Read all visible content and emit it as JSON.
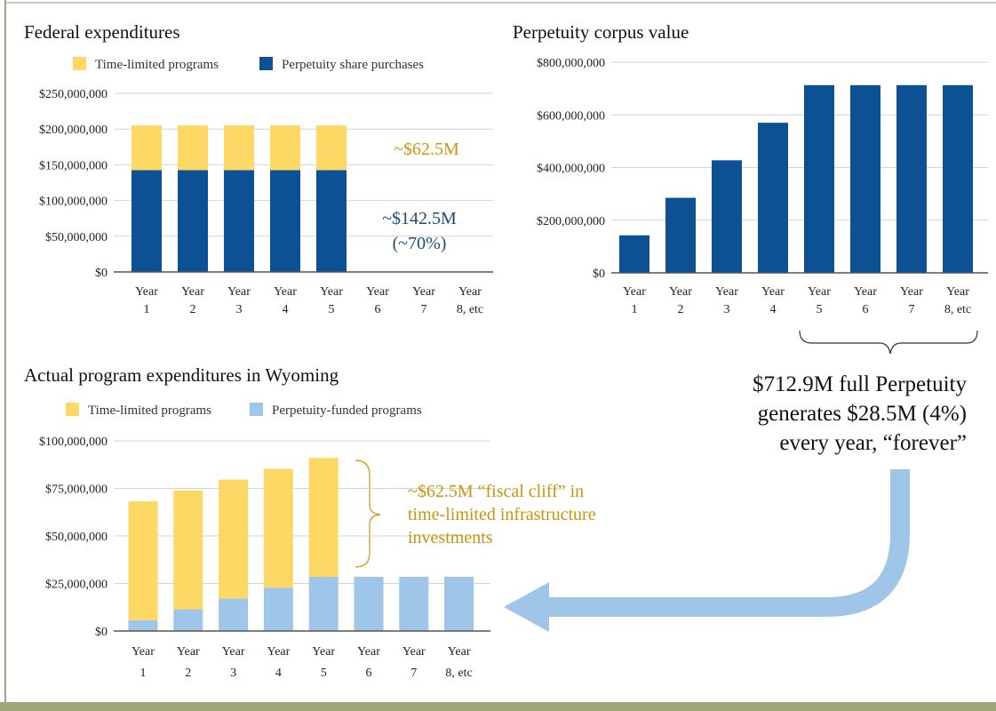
{
  "chart_data": [
    {
      "type": "bar",
      "stacked": true,
      "title": "Federal expenditures",
      "categories": [
        [
          "Year",
          "1"
        ],
        [
          "Year",
          "2"
        ],
        [
          "Year",
          "3"
        ],
        [
          "Year",
          "4"
        ],
        [
          "Year",
          "5"
        ],
        [
          "Year",
          "6"
        ],
        [
          "Year",
          "7"
        ],
        [
          "Year",
          "8, etc"
        ]
      ],
      "series": [
        {
          "name": "Perpetuity share purchases",
          "color": "#0d5195",
          "values": [
            142.5,
            142.5,
            142.5,
            142.5,
            142.5,
            0,
            0,
            0
          ]
        },
        {
          "name": "Time-limited programs",
          "color": "#fdd865",
          "values": [
            62.5,
            62.5,
            62.5,
            62.5,
            62.5,
            0,
            0,
            0
          ]
        }
      ],
      "legend_order": [
        1,
        0
      ],
      "unit": "millions USD",
      "ylim": [
        0,
        250
      ],
      "yticks": [
        "$0",
        "$50,000,000",
        "$100,000,000",
        "$150,000,000",
        "$200,000,000",
        "$250,000,000"
      ],
      "annotations": [
        {
          "text": "~$62.5M",
          "color": "#c8960c"
        },
        {
          "text": "~$142.5M",
          "color": "#1d4a7a"
        },
        {
          "text": "(~70%)",
          "color": "#1d4a7a"
        }
      ]
    },
    {
      "type": "bar",
      "title": "Perpetuity corpus value",
      "categories": [
        [
          "Year",
          "1"
        ],
        [
          "Year",
          "2"
        ],
        [
          "Year",
          "3"
        ],
        [
          "Year",
          "4"
        ],
        [
          "Year",
          "5"
        ],
        [
          "Year",
          "6"
        ],
        [
          "Year",
          "7"
        ],
        [
          "Year",
          "8, etc"
        ]
      ],
      "series": [
        {
          "name": "Perpetuity corpus value",
          "color": "#0d5195",
          "values": [
            142.5,
            285,
            427.5,
            570,
            712.9,
            712.9,
            712.9,
            712.9
          ]
        }
      ],
      "unit": "millions USD",
      "ylim": [
        0,
        800
      ],
      "yticks": [
        "$0",
        "$200,000,000",
        "$400,000,000",
        "$600,000,000",
        "$800,000,000"
      ],
      "annotations": [
        {
          "text": "$712.9M full Perpetuity"
        },
        {
          "text": "generates $28.5M (4%)"
        },
        {
          "text": "every year, “forever”"
        }
      ]
    },
    {
      "type": "bar",
      "stacked": true,
      "title": "Actual program expenditures in Wyoming",
      "categories": [
        [
          "Year",
          "1"
        ],
        [
          "Year",
          "2"
        ],
        [
          "Year",
          "3"
        ],
        [
          "Year",
          "4"
        ],
        [
          "Year",
          "5"
        ],
        [
          "Year",
          "6"
        ],
        [
          "Year",
          "7"
        ],
        [
          "Year",
          "8, etc"
        ]
      ],
      "series": [
        {
          "name": "Perpetuity-funded programs",
          "color": "#9fc5e8",
          "values": [
            5.7,
            11.4,
            17.1,
            22.8,
            28.5,
            28.5,
            28.5,
            28.5
          ]
        },
        {
          "name": "Time-limited programs",
          "color": "#fdd865",
          "values": [
            62.5,
            62.5,
            62.5,
            62.5,
            62.5,
            0,
            0,
            0
          ]
        }
      ],
      "legend_order": [
        1,
        0
      ],
      "unit": "millions USD",
      "ylim": [
        0,
        100
      ],
      "yticks": [
        "$0",
        "$25,000,000",
        "$50,000,000",
        "$75,000,000",
        "$100,000,000"
      ],
      "annotations": [
        {
          "text": "~$62.5M “fiscal cliff” in",
          "color": "#c8960c"
        },
        {
          "text": "time-limited infrastructure",
          "color": "#c8960c"
        },
        {
          "text": "investments",
          "color": "#c8960c"
        }
      ]
    }
  ]
}
